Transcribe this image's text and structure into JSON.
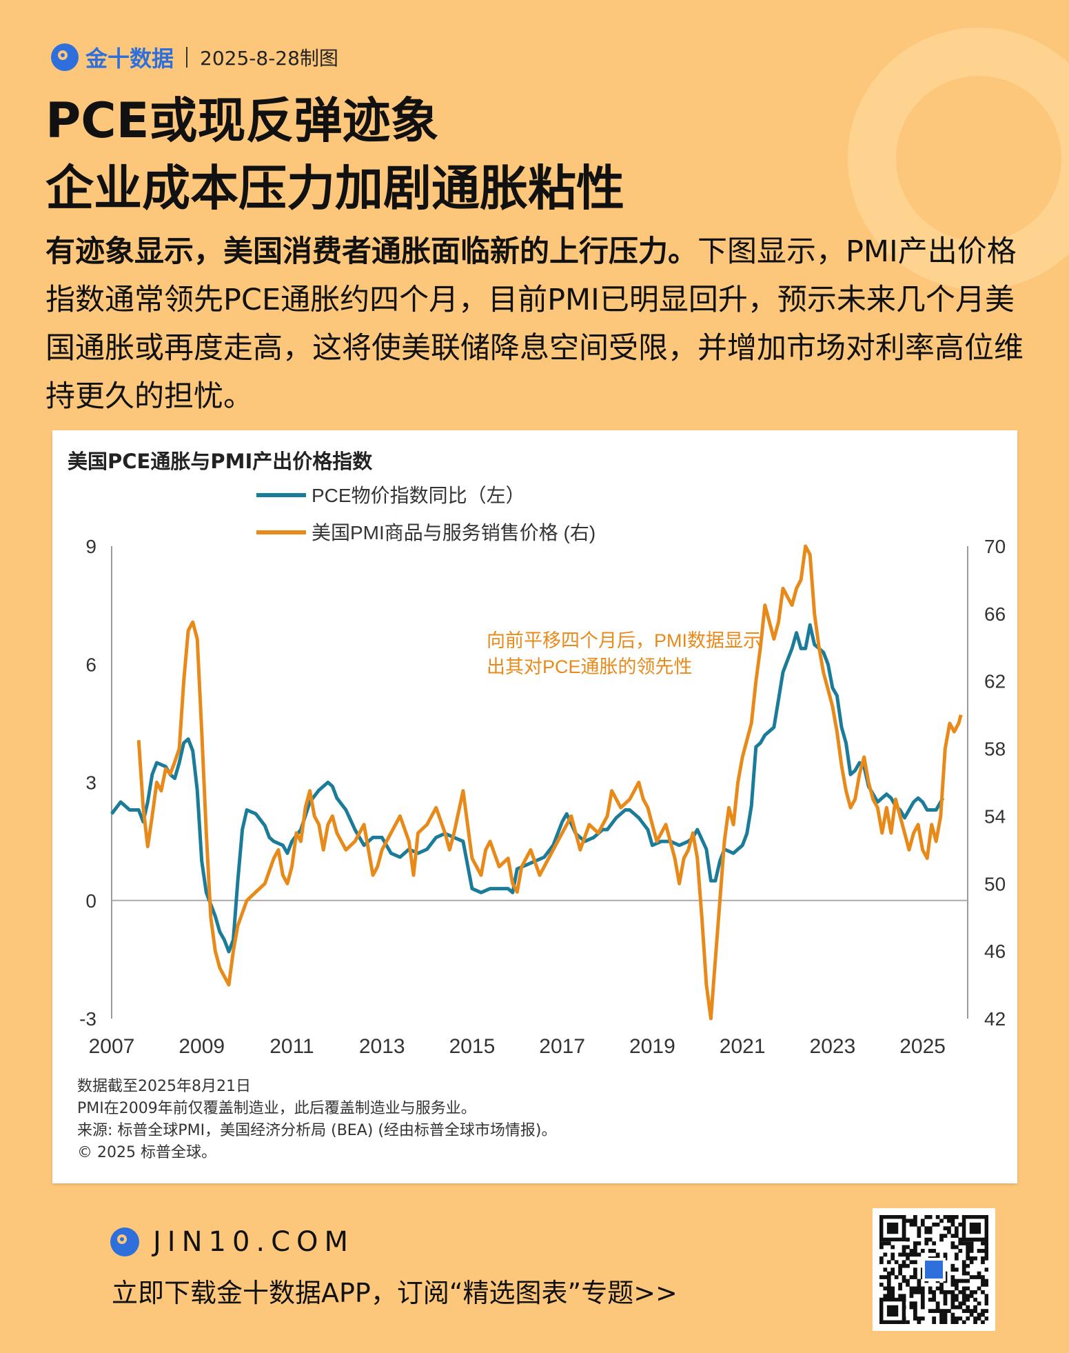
{
  "header": {
    "brand": "金十数据",
    "date": "2025-8-28制图"
  },
  "headline": {
    "line1": "PCE或现反弹迹象",
    "line2": "企业成本压力加剧通胀粘性"
  },
  "intro": {
    "lead": "有迹象显示，美国消费者通胀面临新的上行压力。",
    "body": "下图显示，PMI产出价格指数通常领先PCE通胀约四个月，目前PMI已明显回升，预示未来几个月美国通胀或再度走高，这将使美联储降息空间受限，并增加市场对利率高位维持更久的担忧。"
  },
  "chart_data": {
    "type": "line",
    "title": "美国PCE通胀与PMI产出价格指数",
    "annotation": "向前平移四个月后，PMI数据显示出其对PCE通胀的领先性",
    "x_ticks": [
      "2007",
      "2009",
      "2011",
      "2013",
      "2015",
      "2017",
      "2019",
      "2021",
      "2023",
      "2025"
    ],
    "xlim": [
      2007,
      2026
    ],
    "y_left": {
      "ticks": [
        -3,
        0,
        3,
        6,
        9
      ],
      "lim": [
        -3,
        9
      ]
    },
    "y_right": {
      "ticks": [
        42,
        46,
        50,
        54,
        58,
        62,
        66,
        70
      ],
      "lim": [
        42,
        70
      ]
    },
    "series": [
      {
        "name": "PCE物价指数同比（左）",
        "axis": "left",
        "color": "#1b7c99",
        "points": [
          [
            2007.0,
            2.2
          ],
          [
            2007.2,
            2.5
          ],
          [
            2007.4,
            2.3
          ],
          [
            2007.6,
            2.3
          ],
          [
            2007.7,
            2.0
          ],
          [
            2007.8,
            2.5
          ],
          [
            2007.9,
            3.2
          ],
          [
            2008.0,
            3.5
          ],
          [
            2008.2,
            3.4
          ],
          [
            2008.3,
            3.2
          ],
          [
            2008.4,
            3.1
          ],
          [
            2008.5,
            3.5
          ],
          [
            2008.6,
            4.0
          ],
          [
            2008.7,
            4.1
          ],
          [
            2008.8,
            3.8
          ],
          [
            2008.9,
            2.8
          ],
          [
            2009.0,
            1.0
          ],
          [
            2009.1,
            0.2
          ],
          [
            2009.2,
            -0.1
          ],
          [
            2009.3,
            -0.4
          ],
          [
            2009.4,
            -0.8
          ],
          [
            2009.5,
            -1.0
          ],
          [
            2009.6,
            -1.3
          ],
          [
            2009.7,
            -1.0
          ],
          [
            2009.8,
            0.5
          ],
          [
            2009.9,
            1.8
          ],
          [
            2010.0,
            2.3
          ],
          [
            2010.2,
            2.2
          ],
          [
            2010.4,
            1.9
          ],
          [
            2010.5,
            1.6
          ],
          [
            2010.6,
            1.5
          ],
          [
            2010.8,
            1.4
          ],
          [
            2010.9,
            1.2
          ],
          [
            2011.0,
            1.5
          ],
          [
            2011.2,
            1.8
          ],
          [
            2011.4,
            2.5
          ],
          [
            2011.6,
            2.8
          ],
          [
            2011.8,
            3.0
          ],
          [
            2011.9,
            2.9
          ],
          [
            2012.0,
            2.6
          ],
          [
            2012.2,
            2.3
          ],
          [
            2012.4,
            1.8
          ],
          [
            2012.6,
            1.4
          ],
          [
            2012.8,
            1.6
          ],
          [
            2013.0,
            1.6
          ],
          [
            2013.2,
            1.2
          ],
          [
            2013.4,
            1.1
          ],
          [
            2013.6,
            1.3
          ],
          [
            2013.8,
            1.2
          ],
          [
            2014.0,
            1.3
          ],
          [
            2014.2,
            1.6
          ],
          [
            2014.4,
            1.7
          ],
          [
            2014.6,
            1.6
          ],
          [
            2014.8,
            1.5
          ],
          [
            2015.0,
            0.3
          ],
          [
            2015.2,
            0.2
          ],
          [
            2015.4,
            0.3
          ],
          [
            2015.6,
            0.3
          ],
          [
            2015.8,
            0.3
          ],
          [
            2015.9,
            0.2
          ],
          [
            2016.0,
            0.8
          ],
          [
            2016.2,
            0.9
          ],
          [
            2016.4,
            1.0
          ],
          [
            2016.6,
            1.1
          ],
          [
            2016.8,
            1.4
          ],
          [
            2017.0,
            2.0
          ],
          [
            2017.1,
            2.2
          ],
          [
            2017.3,
            1.7
          ],
          [
            2017.5,
            1.5
          ],
          [
            2017.7,
            1.6
          ],
          [
            2017.9,
            1.8
          ],
          [
            2018.0,
            1.8
          ],
          [
            2018.2,
            2.1
          ],
          [
            2018.4,
            2.3
          ],
          [
            2018.5,
            2.3
          ],
          [
            2018.7,
            2.1
          ],
          [
            2018.9,
            1.8
          ],
          [
            2019.0,
            1.4
          ],
          [
            2019.2,
            1.5
          ],
          [
            2019.4,
            1.5
          ],
          [
            2019.6,
            1.4
          ],
          [
            2019.8,
            1.5
          ],
          [
            2019.9,
            1.6
          ],
          [
            2020.0,
            1.8
          ],
          [
            2020.2,
            1.3
          ],
          [
            2020.3,
            0.5
          ],
          [
            2020.4,
            0.5
          ],
          [
            2020.5,
            1.0
          ],
          [
            2020.6,
            1.3
          ],
          [
            2020.8,
            1.2
          ],
          [
            2020.9,
            1.3
          ],
          [
            2021.0,
            1.4
          ],
          [
            2021.1,
            1.7
          ],
          [
            2021.2,
            2.4
          ],
          [
            2021.3,
            3.9
          ],
          [
            2021.4,
            4.0
          ],
          [
            2021.5,
            4.2
          ],
          [
            2021.6,
            4.3
          ],
          [
            2021.7,
            4.4
          ],
          [
            2021.8,
            5.1
          ],
          [
            2021.9,
            5.8
          ],
          [
            2022.0,
            6.1
          ],
          [
            2022.1,
            6.4
          ],
          [
            2022.2,
            6.8
          ],
          [
            2022.3,
            6.4
          ],
          [
            2022.4,
            6.4
          ],
          [
            2022.5,
            7.0
          ],
          [
            2022.6,
            6.5
          ],
          [
            2022.7,
            6.4
          ],
          [
            2022.8,
            6.3
          ],
          [
            2022.9,
            6.0
          ],
          [
            2023.0,
            5.4
          ],
          [
            2023.1,
            5.2
          ],
          [
            2023.2,
            4.4
          ],
          [
            2023.3,
            4.0
          ],
          [
            2023.4,
            3.2
          ],
          [
            2023.5,
            3.3
          ],
          [
            2023.6,
            3.5
          ],
          [
            2023.7,
            3.4
          ],
          [
            2023.8,
            2.9
          ],
          [
            2023.9,
            2.7
          ],
          [
            2024.0,
            2.5
          ],
          [
            2024.1,
            2.6
          ],
          [
            2024.2,
            2.7
          ],
          [
            2024.3,
            2.6
          ],
          [
            2024.4,
            2.4
          ],
          [
            2024.5,
            2.3
          ],
          [
            2024.6,
            2.1
          ],
          [
            2024.7,
            2.3
          ],
          [
            2024.8,
            2.5
          ],
          [
            2024.9,
            2.6
          ],
          [
            2025.0,
            2.5
          ],
          [
            2025.1,
            2.3
          ],
          [
            2025.2,
            2.3
          ],
          [
            2025.3,
            2.3
          ],
          [
            2025.4,
            2.5
          ],
          [
            2025.45,
            2.6
          ]
        ]
      },
      {
        "name": "美国PMI商品与服务销售价格 (右)",
        "axis": "right",
        "color": "#e88a1a",
        "points": [
          [
            2007.6,
            58.5
          ],
          [
            2007.7,
            54.5
          ],
          [
            2007.8,
            52.2
          ],
          [
            2007.9,
            54.0
          ],
          [
            2008.0,
            56.0
          ],
          [
            2008.1,
            55.5
          ],
          [
            2008.2,
            56.8
          ],
          [
            2008.3,
            56.5
          ],
          [
            2008.4,
            57.2
          ],
          [
            2008.5,
            58.0
          ],
          [
            2008.6,
            62.0
          ],
          [
            2008.7,
            65.0
          ],
          [
            2008.8,
            65.5
          ],
          [
            2008.9,
            64.5
          ],
          [
            2009.0,
            59.0
          ],
          [
            2009.1,
            53.0
          ],
          [
            2009.2,
            48.0
          ],
          [
            2009.3,
            46.0
          ],
          [
            2009.4,
            45.0
          ],
          [
            2009.5,
            44.5
          ],
          [
            2009.6,
            44.0
          ],
          [
            2009.7,
            46.0
          ],
          [
            2009.8,
            47.5
          ],
          [
            2010.0,
            49.0
          ],
          [
            2010.2,
            49.5
          ],
          [
            2010.4,
            50.0
          ],
          [
            2010.6,
            51.5
          ],
          [
            2010.7,
            52.0
          ],
          [
            2010.8,
            50.5
          ],
          [
            2010.9,
            50.0
          ],
          [
            2011.0,
            51.0
          ],
          [
            2011.1,
            53.0
          ],
          [
            2011.2,
            52.5
          ],
          [
            2011.3,
            54.5
          ],
          [
            2011.4,
            55.5
          ],
          [
            2011.5,
            54.0
          ],
          [
            2011.6,
            53.5
          ],
          [
            2011.7,
            52.0
          ],
          [
            2011.8,
            53.5
          ],
          [
            2011.9,
            54.0
          ],
          [
            2012.0,
            53.0
          ],
          [
            2012.2,
            52.0
          ],
          [
            2012.4,
            52.5
          ],
          [
            2012.6,
            53.5
          ],
          [
            2012.8,
            50.5
          ],
          [
            2012.9,
            51.0
          ],
          [
            2013.0,
            52.0
          ],
          [
            2013.2,
            53.0
          ],
          [
            2013.4,
            54.0
          ],
          [
            2013.6,
            52.5
          ],
          [
            2013.7,
            50.5
          ],
          [
            2013.8,
            53.0
          ],
          [
            2014.0,
            53.5
          ],
          [
            2014.2,
            54.5
          ],
          [
            2014.4,
            53.0
          ],
          [
            2014.5,
            52.0
          ],
          [
            2014.6,
            53.0
          ],
          [
            2014.8,
            55.5
          ],
          [
            2014.9,
            53.5
          ],
          [
            2015.0,
            51.5
          ],
          [
            2015.2,
            50.5
          ],
          [
            2015.3,
            52.0
          ],
          [
            2015.4,
            52.5
          ],
          [
            2015.6,
            51.0
          ],
          [
            2015.8,
            51.5
          ],
          [
            2015.9,
            50.0
          ],
          [
            2016.0,
            49.5
          ],
          [
            2016.1,
            51.0
          ],
          [
            2016.3,
            52.0
          ],
          [
            2016.5,
            50.5
          ],
          [
            2016.7,
            51.5
          ],
          [
            2016.9,
            52.5
          ],
          [
            2017.0,
            53.0
          ],
          [
            2017.2,
            54.0
          ],
          [
            2017.4,
            52.0
          ],
          [
            2017.6,
            53.5
          ],
          [
            2017.8,
            53.0
          ],
          [
            2018.0,
            54.0
          ],
          [
            2018.1,
            55.5
          ],
          [
            2018.3,
            54.5
          ],
          [
            2018.5,
            55.0
          ],
          [
            2018.7,
            56.0
          ],
          [
            2018.8,
            55.0
          ],
          [
            2018.9,
            54.5
          ],
          [
            2019.0,
            53.5
          ],
          [
            2019.1,
            52.5
          ],
          [
            2019.3,
            53.5
          ],
          [
            2019.5,
            51.5
          ],
          [
            2019.6,
            50.0
          ],
          [
            2019.7,
            51.5
          ],
          [
            2019.8,
            52.0
          ],
          [
            2019.9,
            53.0
          ],
          [
            2020.0,
            51.5
          ],
          [
            2020.1,
            48.0
          ],
          [
            2020.2,
            44.0
          ],
          [
            2020.3,
            42.0
          ],
          [
            2020.4,
            45.5
          ],
          [
            2020.5,
            49.0
          ],
          [
            2020.6,
            52.5
          ],
          [
            2020.7,
            54.5
          ],
          [
            2020.8,
            53.5
          ],
          [
            2020.9,
            56.0
          ],
          [
            2021.0,
            57.5
          ],
          [
            2021.1,
            58.5
          ],
          [
            2021.2,
            59.5
          ],
          [
            2021.3,
            62.0
          ],
          [
            2021.4,
            64.0
          ],
          [
            2021.5,
            66.5
          ],
          [
            2021.6,
            65.5
          ],
          [
            2021.7,
            64.5
          ],
          [
            2021.8,
            65.5
          ],
          [
            2021.9,
            67.5
          ],
          [
            2022.0,
            67.0
          ],
          [
            2022.1,
            66.5
          ],
          [
            2022.2,
            67.5
          ],
          [
            2022.3,
            68.0
          ],
          [
            2022.4,
            70.0
          ],
          [
            2022.5,
            69.5
          ],
          [
            2022.6,
            66.0
          ],
          [
            2022.7,
            64.0
          ],
          [
            2022.8,
            62.5
          ],
          [
            2022.9,
            61.5
          ],
          [
            2023.0,
            60.5
          ],
          [
            2023.1,
            59.0
          ],
          [
            2023.2,
            57.0
          ],
          [
            2023.3,
            55.5
          ],
          [
            2023.4,
            54.5
          ],
          [
            2023.5,
            55.0
          ],
          [
            2023.6,
            56.5
          ],
          [
            2023.7,
            57.5
          ],
          [
            2023.8,
            56.0
          ],
          [
            2023.9,
            55.0
          ],
          [
            2024.0,
            54.5
          ],
          [
            2024.1,
            53.0
          ],
          [
            2024.2,
            54.5
          ],
          [
            2024.3,
            53.0
          ],
          [
            2024.4,
            55.0
          ],
          [
            2024.5,
            54.0
          ],
          [
            2024.6,
            53.0
          ],
          [
            2024.7,
            52.0
          ],
          [
            2024.8,
            53.0
          ],
          [
            2024.9,
            53.5
          ],
          [
            2025.0,
            52.0
          ],
          [
            2025.1,
            51.5
          ],
          [
            2025.2,
            53.5
          ],
          [
            2025.3,
            52.5
          ],
          [
            2025.4,
            54.0
          ],
          [
            2025.5,
            58.0
          ],
          [
            2025.6,
            59.5
          ],
          [
            2025.7,
            59.0
          ],
          [
            2025.8,
            59.5
          ],
          [
            2025.85,
            60.0
          ]
        ]
      }
    ],
    "notes": [
      "数据截至2025年8月21日",
      "PMI在2009年前仅覆盖制造业，此后覆盖制造业与服务业。",
      "来源: 标普全球PMI，美国经济分析局 (BEA) (经由标普全球市场情报)。",
      "© 2025 标普全球。"
    ]
  },
  "footer": {
    "site": "JIN10.COM",
    "cta": "立即下载金十数据APP，订阅“精选图表”专题>>"
  },
  "colors": {
    "background": "#fcc77b",
    "brand_blue": "#2e6fdb",
    "pce": "#1b7c99",
    "pmi": "#e88a1a"
  }
}
